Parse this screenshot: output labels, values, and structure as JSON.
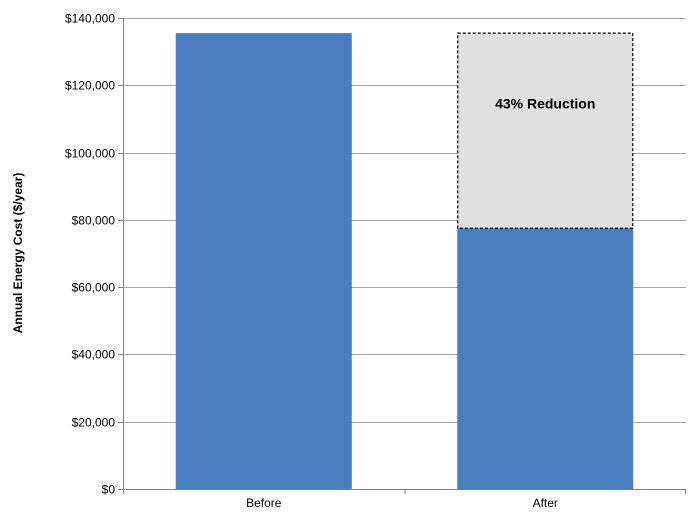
{
  "chart_data": {
    "type": "bar",
    "categories": [
      "Before",
      "After"
    ],
    "values": [
      135500,
      77500
    ],
    "reduction_segment": {
      "category": "After",
      "from": 77500,
      "to": 135500,
      "label": "43% Reduction",
      "fill_color": "#e0e0e0",
      "border_color": "#000000",
      "border_style": "dashed"
    },
    "title": "",
    "xlabel": "",
    "ylabel": "Annual Energy Cost ($/year)",
    "ylim": [
      0,
      140000
    ],
    "yticks": [
      0,
      20000,
      40000,
      60000,
      80000,
      100000,
      120000,
      140000
    ],
    "ytick_labels": [
      "$0",
      "$20,000",
      "$40,000",
      "$60,000",
      "$80,000",
      "$100,000",
      "$120,000",
      "$140,000"
    ],
    "grid": true,
    "bar_color": "#4a7ebf",
    "grid_color": "#a6a6a6"
  }
}
